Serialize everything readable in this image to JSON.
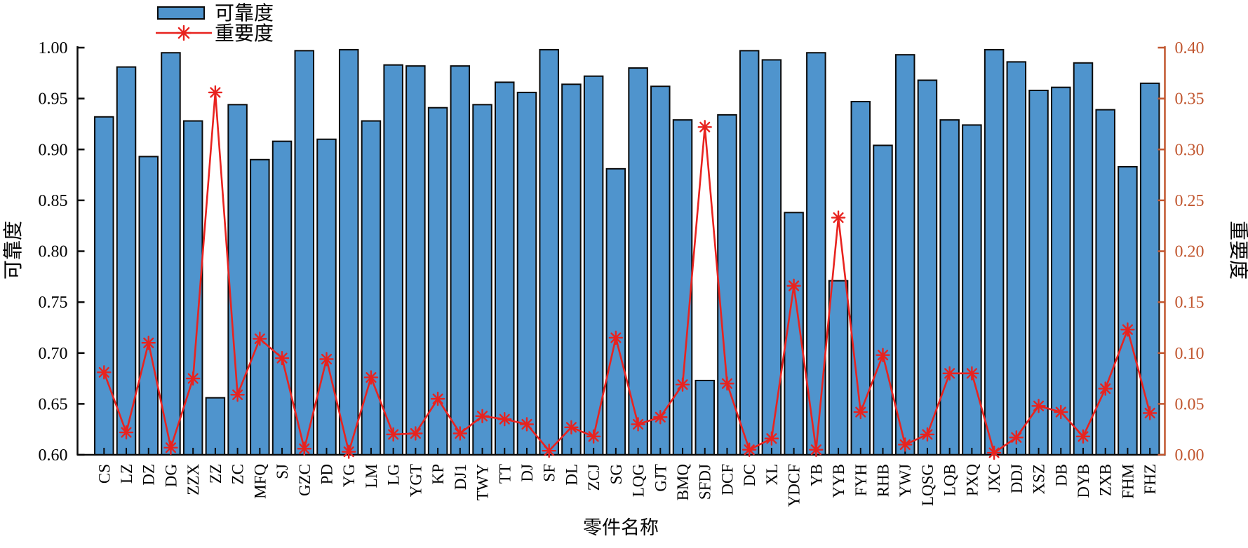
{
  "legend": {
    "bar_label": "可靠度",
    "line_label": "重要度"
  },
  "axes": {
    "left_label": "可靠度",
    "right_label": "重要度",
    "x_label": "零件名称",
    "left_ticks": [
      "1.00",
      "0.95",
      "0.90",
      "0.85",
      "0.80",
      "0.75",
      "0.70",
      "0.65",
      "0.60"
    ],
    "right_ticks": [
      "0.40",
      "0.35",
      "0.30",
      "0.25",
      "0.20",
      "0.15",
      "0.10",
      "0.05",
      "0.00"
    ]
  },
  "colors": {
    "bar_fill": "#4f94cd",
    "bar_edge": "#0a0a0a",
    "line": "#e8231f",
    "left_axis": "#0a0a0a",
    "right_axis": "#c1562f"
  },
  "chart_data": {
    "type": "bar+line",
    "title": "",
    "xlabel": "零件名称",
    "ylabel_left": "可靠度",
    "ylabel_right": "重要度",
    "ylim_left": [
      0.6,
      1.0
    ],
    "ylim_right": [
      0.0,
      0.4
    ],
    "grid": false,
    "legend_position": "top-left",
    "categories": [
      "CS",
      "LZ",
      "DZ",
      "DG",
      "ZZX",
      "ZZ",
      "ZC",
      "MFQ",
      "SJ",
      "GZC",
      "PD",
      "YG",
      "LM",
      "LG",
      "YGT",
      "KP",
      "DJ1",
      "TWY",
      "TT",
      "DJ",
      "SF",
      "DL",
      "ZCJ",
      "SG",
      "LQG",
      "GJT",
      "BMQ",
      "SFDJ",
      "DCF",
      "DC",
      "XL",
      "YDCF",
      "YB",
      "YYB",
      "FYH",
      "RHB",
      "YWJ",
      "LQSG",
      "LQB",
      "PXQ",
      "JXC",
      "DDJ",
      "XSZ",
      "DB",
      "DYB",
      "ZXB",
      "FHM",
      "FHZ"
    ],
    "series": [
      {
        "name": "可靠度",
        "type": "bar",
        "axis": "left",
        "values": [
          0.932,
          0.981,
          0.893,
          0.995,
          0.928,
          0.656,
          0.944,
          0.89,
          0.908,
          0.997,
          0.91,
          0.998,
          0.928,
          0.983,
          0.982,
          0.941,
          0.982,
          0.944,
          0.966,
          0.956,
          0.998,
          0.964,
          0.972,
          0.881,
          0.98,
          0.962,
          0.929,
          0.673,
          0.934,
          0.997,
          0.988,
          0.838,
          0.995,
          0.771,
          0.947,
          0.904,
          0.993,
          0.968,
          0.929,
          0.924,
          0.998,
          0.986,
          0.958,
          0.961,
          0.985,
          0.939,
          0.883,
          0.965
        ]
      },
      {
        "name": "重要度",
        "type": "line",
        "axis": "right",
        "marker": "asterisk",
        "values": [
          0.081,
          0.022,
          0.11,
          0.007,
          0.075,
          0.356,
          0.059,
          0.114,
          0.095,
          0.006,
          0.094,
          0.003,
          0.076,
          0.02,
          0.021,
          0.055,
          0.021,
          0.038,
          0.035,
          0.03,
          0.004,
          0.027,
          0.018,
          0.115,
          0.03,
          0.037,
          0.069,
          0.322,
          0.07,
          0.005,
          0.016,
          0.166,
          0.005,
          0.233,
          0.042,
          0.098,
          0.01,
          0.02,
          0.08,
          0.08,
          0.002,
          0.017,
          0.048,
          0.042,
          0.018,
          0.065,
          0.123,
          0.041
        ]
      }
    ]
  }
}
